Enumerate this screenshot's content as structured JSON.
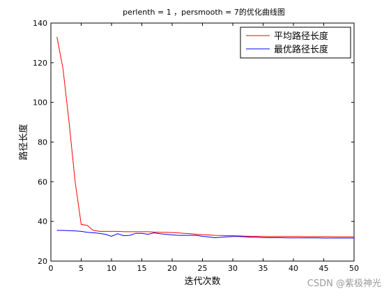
{
  "chart_data": {
    "type": "line",
    "title": "perlenth = 1 ，persmooth = 7的优化曲线图",
    "xlabel": "迭代次数",
    "ylabel": "路径长度",
    "xlim": [
      0,
      50
    ],
    "ylim": [
      20,
      140
    ],
    "xticks": [
      0,
      5,
      10,
      15,
      20,
      25,
      30,
      35,
      40,
      45,
      50
    ],
    "yticks": [
      20,
      40,
      60,
      80,
      100,
      120,
      140
    ],
    "grid": false,
    "legend_position": "top-right",
    "x": [
      1,
      2,
      3,
      4,
      5,
      6,
      7,
      8,
      9,
      10,
      11,
      12,
      13,
      14,
      15,
      16,
      17,
      18,
      19,
      20,
      21,
      22,
      23,
      24,
      25,
      26,
      27,
      28,
      29,
      30,
      31,
      32,
      33,
      34,
      35,
      36,
      37,
      38,
      39,
      40,
      41,
      42,
      43,
      44,
      45,
      46,
      47,
      48,
      49,
      50
    ],
    "series": [
      {
        "name": "平均路径长度",
        "color": "#ff0000",
        "values": [
          133,
          117,
          90,
          60,
          38.5,
          38,
          35.5,
          35,
          35,
          35,
          35,
          34.8,
          34.8,
          34.8,
          34.8,
          34.8,
          34.6,
          34.5,
          34.5,
          34.4,
          34.2,
          34,
          33.8,
          33.5,
          33.3,
          33.2,
          33.0,
          32.9,
          32.8,
          32.8,
          32.7,
          32.6,
          32.5,
          32.5,
          32.5,
          32.4,
          32.4,
          32.4,
          32.4,
          32.4,
          32.4,
          32.3,
          32.3,
          32.3,
          32.3,
          32.3,
          32.2,
          32.2,
          32.2,
          32.2
        ]
      },
      {
        "name": "最优路径长度",
        "color": "#0000ff",
        "values": [
          35.5,
          35.5,
          35.3,
          35.2,
          35.0,
          34.5,
          34.3,
          34.0,
          33.5,
          32.5,
          33.8,
          32.8,
          33.0,
          34.0,
          34.0,
          33.5,
          34.2,
          33.8,
          33.5,
          33.2,
          33.0,
          33.0,
          33.0,
          33.0,
          32.5,
          32.2,
          31.8,
          32.0,
          32.2,
          32.4,
          32.4,
          32.2,
          32.0,
          32.0,
          31.8,
          31.8,
          31.8,
          31.8,
          31.7,
          31.7,
          31.7,
          31.7,
          31.7,
          31.7,
          31.6,
          31.6,
          31.6,
          31.6,
          31.6,
          31.6
        ]
      }
    ]
  },
  "watermark": "CSDN @紫极神光"
}
